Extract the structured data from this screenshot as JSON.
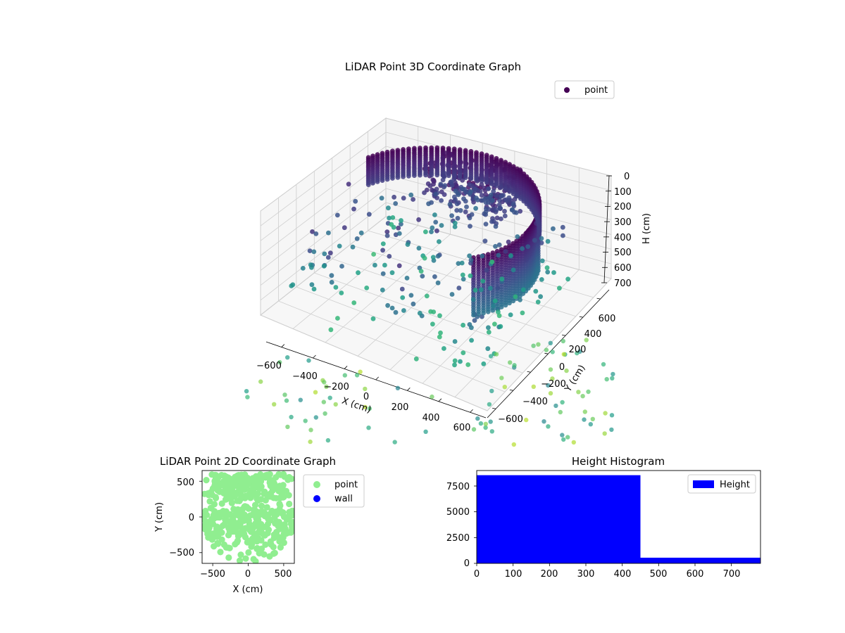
{
  "chart_data": [
    {
      "type": "scatter",
      "projection": "3d",
      "title": "LiDAR Point 3D Coordinate Graph",
      "xlabel": "X (cm)",
      "ylabel": "Y (cm)",
      "zlabel": "H (cm)",
      "xlim": [
        -700,
        700
      ],
      "ylim": [
        -700,
        700
      ],
      "zlim": [
        750,
        0
      ],
      "xticks": [
        "−600",
        "−400",
        "−200",
        "0",
        "200",
        "400",
        "600"
      ],
      "yticks": [
        "−600",
        "−400",
        "−200",
        "0",
        "200",
        "400",
        "600"
      ],
      "zticks": [
        "0",
        "100",
        "200",
        "300",
        "400",
        "500",
        "600",
        "700"
      ],
      "legend": [
        "point"
      ],
      "legend_position": "top-right",
      "colormap": "viridis",
      "grid": true
    },
    {
      "type": "scatter",
      "title": "LiDAR Point 2D Coordinate Graph",
      "xlabel": "X (cm)",
      "ylabel": "Y (cm)",
      "xlim": [
        -650,
        650
      ],
      "ylim": [
        -650,
        650
      ],
      "xticks": [
        "−500",
        "0",
        "500"
      ],
      "yticks": [
        "500",
        "0",
        "−500"
      ],
      "series": [
        {
          "name": "point",
          "color": "#90ee90"
        },
        {
          "name": "wall",
          "color": "#0000ff"
        }
      ],
      "legend_position": "outside-right"
    },
    {
      "type": "bar",
      "title": "Height Histogram",
      "xlim": [
        0,
        780
      ],
      "ylim": [
        0,
        9000
      ],
      "xticks": [
        "0",
        "100",
        "200",
        "300",
        "400",
        "500",
        "600",
        "700"
      ],
      "yticks": [
        "0",
        "2500",
        "5000",
        "7500"
      ],
      "bins": [
        {
          "start": 0,
          "end": 450,
          "count": 8550
        },
        {
          "start": 450,
          "end": 780,
          "count": 550
        }
      ],
      "series": [
        {
          "name": "Height",
          "color": "#0000ff"
        }
      ],
      "legend_position": "top-right"
    }
  ]
}
